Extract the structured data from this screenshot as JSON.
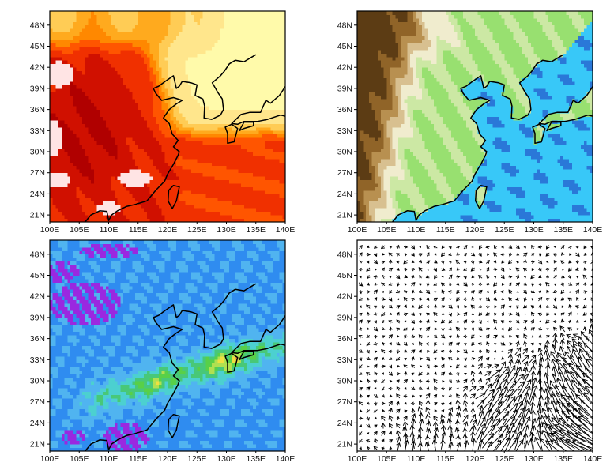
{
  "chart_data": [
    {
      "type": "heatmap",
      "subtype": "filled-contour-map",
      "position": "top-left",
      "xlim": [
        100,
        140
      ],
      "ylim": [
        20,
        50
      ],
      "x_ticks": [
        "100E",
        "105E",
        "110E",
        "115E",
        "120E",
        "125E",
        "130E",
        "135E",
        "140E"
      ],
      "y_ticks": [
        "21N",
        "24N",
        "27N",
        "30N",
        "33N",
        "36N",
        "39N",
        "42N",
        "45N",
        "48N"
      ],
      "colors": [
        "#fffaaa",
        "#ffe68c",
        "#ffcc55",
        "#ffaa1e",
        "#ff8800",
        "#ff5500",
        "#f03000",
        "#d01000",
        "#b00000",
        "#ffe4e4"
      ],
      "coastlines": true
    },
    {
      "type": "heatmap",
      "subtype": "filled-contour-map",
      "position": "top-right",
      "xlim": [
        100,
        140
      ],
      "ylim": [
        20,
        50
      ],
      "x_ticks": [
        "100E",
        "105E",
        "110E",
        "115E",
        "120E",
        "125E",
        "130E",
        "135E",
        "140E"
      ],
      "y_ticks": [
        "21N",
        "24N",
        "27N",
        "30N",
        "33N",
        "36N",
        "39N",
        "42N",
        "45N",
        "48N"
      ],
      "colors": [
        "#58d840",
        "#98e070",
        "#cce8a4",
        "#f0ecce",
        "#d8c090",
        "#b89050",
        "#906428",
        "#5c3c14",
        "#38c8f8",
        "#2a78d8"
      ],
      "coastlines": true
    },
    {
      "type": "heatmap",
      "subtype": "filled-contour-map",
      "position": "bottom-left",
      "xlim": [
        100,
        140
      ],
      "ylim": [
        20,
        50
      ],
      "x_ticks": [
        "100E",
        "105E",
        "110E",
        "115E",
        "120E",
        "125E",
        "130E",
        "135E",
        "140E"
      ],
      "y_ticks": [
        "21N",
        "24N",
        "27N",
        "30N",
        "33N",
        "36N",
        "39N",
        "42N",
        "45N",
        "48N"
      ],
      "colors": [
        "#9a28e0",
        "#2f8cf0",
        "#50b4f0",
        "#4cd0d0",
        "#48c878",
        "#58d048",
        "#b0e050",
        "#f0e040",
        "#f0a040",
        "#e86070",
        "#d82890"
      ],
      "coastlines": true
    },
    {
      "type": "vector",
      "position": "bottom-right",
      "xlim": [
        100,
        140
      ],
      "ylim": [
        20,
        50
      ],
      "x_ticks": [
        "100E",
        "105E",
        "110E",
        "115E",
        "120E",
        "125E",
        "130E",
        "135E",
        "140E"
      ],
      "y_ticks": [
        "21N",
        "24N",
        "27N",
        "30N",
        "33N",
        "36N",
        "39N",
        "42N",
        "45N",
        "48N"
      ],
      "arrow_color": "#000000",
      "coastlines": false
    }
  ]
}
